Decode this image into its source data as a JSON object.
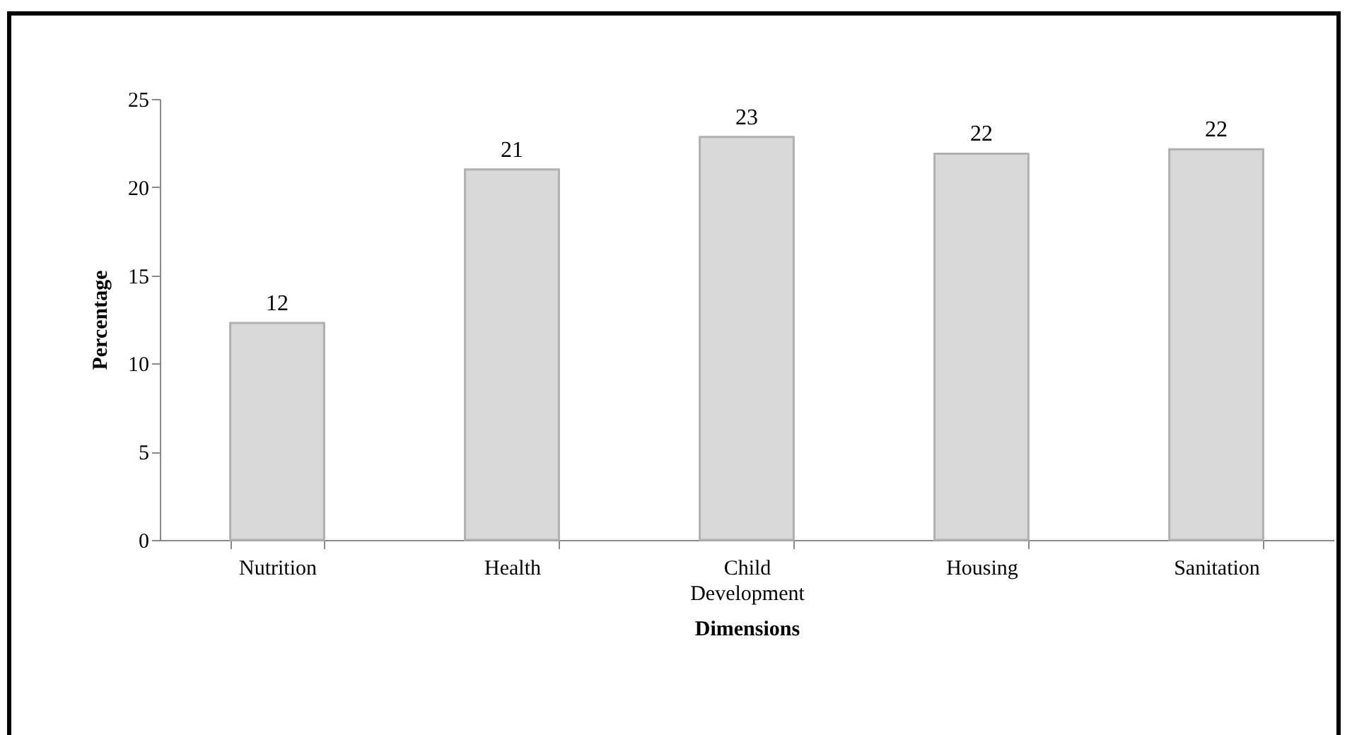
{
  "chart_data": {
    "type": "bar",
    "xlabel": "Dimensions",
    "ylabel": "Percentage",
    "categories": [
      "Nutrition",
      "Health",
      "Child Development",
      "Housing",
      "Sanitation"
    ],
    "values": [
      12.3,
      21,
      22.85,
      21.9,
      22.15
    ],
    "value_labels": [
      "12",
      "21",
      "23",
      "22",
      "22"
    ],
    "color": "#d9d9d9",
    "ylim": [
      0,
      25
    ],
    "yticks": [
      0,
      5,
      10,
      15,
      20,
      25
    ]
  }
}
